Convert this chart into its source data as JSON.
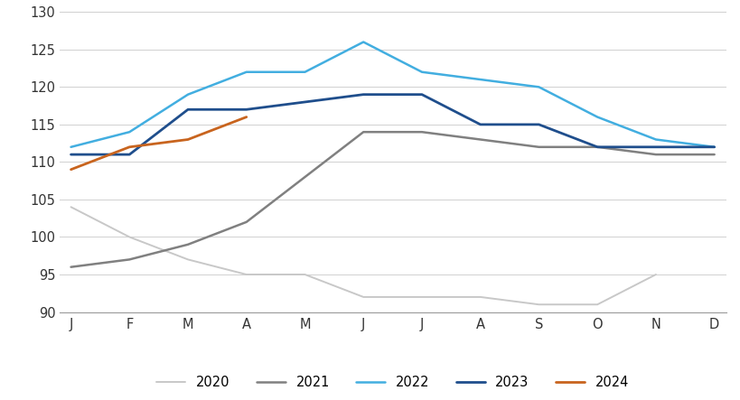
{
  "months": [
    "J",
    "F",
    "M",
    "A",
    "M",
    "J",
    "J",
    "A",
    "S",
    "O",
    "N",
    "D"
  ],
  "series": {
    "2020": [
      104,
      100,
      97,
      95,
      95,
      92,
      92,
      92,
      91,
      91,
      95,
      null
    ],
    "2021": [
      96,
      97,
      99,
      102,
      108,
      114,
      114,
      113,
      112,
      112,
      111,
      111
    ],
    "2022": [
      112,
      114,
      119,
      122,
      122,
      126,
      122,
      121,
      120,
      116,
      113,
      112
    ],
    "2023": [
      111,
      111,
      117,
      117,
      118,
      119,
      119,
      115,
      115,
      112,
      112,
      112
    ],
    "2024": [
      109,
      112,
      113,
      116,
      null,
      null,
      null,
      null,
      null,
      null,
      null,
      null
    ]
  },
  "colors": {
    "2020": "#c8c8c8",
    "2021": "#808080",
    "2022": "#42aee0",
    "2023": "#1f4e8c",
    "2024": "#c8641e"
  },
  "linewidths": {
    "2020": 1.4,
    "2021": 1.8,
    "2022": 1.8,
    "2023": 2.0,
    "2024": 2.0
  },
  "ylim": [
    90,
    130
  ],
  "yticks": [
    90,
    95,
    100,
    105,
    110,
    115,
    120,
    125,
    130
  ],
  "background_color": "#ffffff",
  "grid_color": "#d0d0d0",
  "legend_labels": [
    "2020",
    "2021",
    "2022",
    "2023",
    "2024"
  ]
}
